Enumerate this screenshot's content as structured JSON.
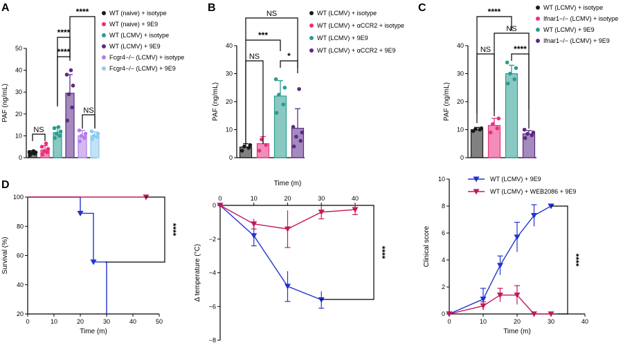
{
  "panels": {
    "A": "A",
    "B": "B",
    "C": "C",
    "D": "D"
  },
  "chart_data": [
    {
      "panel": "A",
      "type": "bar",
      "ylabel": "PAF (ng/mL)",
      "ylim": [
        0,
        50
      ],
      "yticks": [
        "0",
        "10",
        "20",
        "30",
        "40",
        "50"
      ],
      "series": [
        {
          "name": "WT (naive) + isotype",
          "color": "#1a1a1a",
          "mean": 2.2,
          "sd": 1.0,
          "points": [
            1.2,
            1.8,
            2.0,
            2.4,
            2.6,
            3.0
          ]
        },
        {
          "name": "WT (naive) + 9E9",
          "color": "#e8307f",
          "mean": 3.5,
          "sd": 2.0,
          "points": [
            1.5,
            2.5,
            3.0,
            4.0,
            5.0,
            6.5
          ]
        },
        {
          "name": "WT (LCMV) + isotype",
          "color": "#2a9d8f",
          "mean": 11.5,
          "sd": 2.5,
          "points": [
            9.0,
            10.0,
            11.0,
            12.0,
            13.5,
            14.0
          ]
        },
        {
          "name": "WT (LCMV) + 9E9",
          "color": "#5b2a86",
          "mean": 29.5,
          "sd": 8.5,
          "points": [
            17.0,
            23.0,
            29.0,
            33.0,
            38.0,
            40.0
          ]
        },
        {
          "name": "Fcgr4−/− (LCMV) + isotype",
          "color": "#b17ee8",
          "mean": 10.0,
          "sd": 2.5,
          "points": [
            7.5,
            9.0,
            10.0,
            11.0,
            12.5
          ]
        },
        {
          "name": "Fcgr4−/− (LCMV) + 9E9",
          "color": "#8ecbf0",
          "mean": 10.0,
          "sd": 1.8,
          "points": [
            8.5,
            9.5,
            10.0,
            11.0,
            12.0
          ]
        }
      ],
      "comparisons": [
        {
          "label": "NS"
        },
        {
          "label": "****"
        },
        {
          "label": "****"
        },
        {
          "label": "****"
        },
        {
          "label": "NS"
        }
      ]
    },
    {
      "panel": "B",
      "type": "bar",
      "ylabel": "PAF (ng/mL)",
      "ylim": [
        0,
        40
      ],
      "yticks": [
        "0",
        "10",
        "20",
        "30",
        "40"
      ],
      "series": [
        {
          "name": "WT (LCMV) + isotype",
          "color": "#1a1a1a",
          "mean": 3.8,
          "sd": 1.2,
          "points": [
            2.5,
            3.5,
            4.0,
            4.5
          ]
        },
        {
          "name": "WT (LCMV) + αCCR2 + isotype",
          "color": "#e8307f",
          "mean": 5.0,
          "sd": 2.5,
          "points": [
            2.5,
            4.5,
            6.5
          ]
        },
        {
          "name": "WT (LCMV) + 9E9",
          "color": "#2a9d8f",
          "mean": 22.0,
          "sd": 5.5,
          "points": [
            16.0,
            19.0,
            22.5,
            25.0,
            28.0
          ]
        },
        {
          "name": "WT (LCMV) + αCCR2 + 9E9",
          "color": "#5b2a86",
          "mean": 10.5,
          "sd": 7.0,
          "points": [
            4.0,
            6.0,
            7.5,
            9.0,
            11.0,
            24.5
          ]
        }
      ],
      "comparisons": [
        {
          "label": "NS"
        },
        {
          "label": "***"
        },
        {
          "label": "NS"
        },
        {
          "label": "*"
        }
      ]
    },
    {
      "panel": "C",
      "type": "bar",
      "ylabel": "PAF (ng/mL)",
      "ylim": [
        0,
        40
      ],
      "yticks": [
        "0",
        "10",
        "20",
        "30",
        "40"
      ],
      "series": [
        {
          "name": "WT (LCMV) + isotype",
          "color": "#1a1a1a",
          "mean": 10.0,
          "sd": 0.8,
          "points": [
            9.5,
            10.0,
            10.2,
            10.5
          ]
        },
        {
          "name": "Ifnar1−/− (LCMV) + isotype",
          "color": "#e8307f",
          "mean": 11.5,
          "sd": 2.5,
          "points": [
            9.0,
            10.5,
            12.0,
            14.0
          ]
        },
        {
          "name": "WT (LCMV) + 9E9",
          "color": "#2a9d8f",
          "mean": 30.0,
          "sd": 3.0,
          "points": [
            26.5,
            28.0,
            30.0,
            32.0,
            34.0
          ]
        },
        {
          "name": "Ifnar1−/− (LCMV) + 9E9",
          "color": "#5b2a86",
          "mean": 8.5,
          "sd": 1.2,
          "points": [
            7.0,
            8.0,
            8.5,
            9.0,
            10.0
          ]
        }
      ],
      "comparisons": [
        {
          "label": "****"
        },
        {
          "label": "NS"
        },
        {
          "label": "NS"
        },
        {
          "label": "****"
        }
      ]
    },
    {
      "panel": "D-survival",
      "type": "line",
      "xlabel": "Time (m)",
      "ylabel": "Survival (%)",
      "xlim": [
        0,
        50
      ],
      "ylim": [
        20,
        100
      ],
      "xticks": [
        "0",
        "10",
        "20",
        "30",
        "40",
        "50"
      ],
      "yticks": [
        "20",
        "40",
        "60",
        "80",
        "100"
      ],
      "series": [
        {
          "color": "#2233cc",
          "steps": [
            [
              0,
              100
            ],
            [
              20,
              100
            ],
            [
              20,
              88.9
            ],
            [
              25,
              88.9
            ],
            [
              25,
              55.6
            ],
            [
              30,
              55.6
            ],
            [
              30,
              20
            ]
          ],
          "markers": [
            [
              20,
              88.9
            ],
            [
              25,
              55.6
            ]
          ]
        },
        {
          "color": "#c2185b",
          "steps": [
            [
              0,
              100
            ],
            [
              45,
              100
            ]
          ],
          "markers": [
            [
              45,
              100
            ]
          ]
        }
      ],
      "significance": "****"
    },
    {
      "panel": "D-temperature",
      "type": "line",
      "xlabel": "Time (m)",
      "ylabel": "Δ temperature (°C)",
      "xlim": [
        0,
        40
      ],
      "ylim": [
        -8,
        0
      ],
      "xticks": [
        "0",
        "10",
        "20",
        "30",
        "40"
      ],
      "yticks": [
        "0",
        "−2",
        "−4",
        "−6",
        "−8"
      ],
      "series": [
        {
          "color": "#2233cc",
          "x": [
            0,
            10,
            20,
            30
          ],
          "y": [
            0,
            -1.8,
            -4.8,
            -5.6
          ],
          "err": [
            0,
            0.6,
            0.9,
            0.5
          ]
        },
        {
          "color": "#c2185b",
          "x": [
            0,
            10,
            20,
            30,
            40
          ],
          "y": [
            0,
            -1.1,
            -1.4,
            -0.4,
            -0.25
          ],
          "err": [
            0,
            0.3,
            1.1,
            0.4,
            0.3
          ]
        }
      ],
      "significance": "****"
    },
    {
      "panel": "D-clinical",
      "type": "line",
      "xlabel": "Time (m)",
      "ylabel": "Clinical score",
      "xlim": [
        0,
        40
      ],
      "ylim": [
        0,
        10
      ],
      "xticks": [
        "0",
        "10",
        "20",
        "30",
        "40"
      ],
      "yticks": [
        "0",
        "2",
        "4",
        "6",
        "8",
        "10"
      ],
      "series": [
        {
          "name": "WT (LCMV) + 9E9",
          "color": "#2233cc",
          "x": [
            0,
            10,
            15,
            20,
            25,
            30
          ],
          "y": [
            0,
            1.1,
            3.6,
            5.7,
            7.3,
            8.0
          ],
          "err": [
            0,
            0.8,
            0.7,
            1.1,
            0.8,
            0.1
          ]
        },
        {
          "name": "WT (LCMV) + WEB2086 + 9E9",
          "color": "#c2185b",
          "x": [
            0,
            10,
            15,
            20,
            25,
            30
          ],
          "y": [
            0,
            0.6,
            1.4,
            1.4,
            0,
            0
          ],
          "err": [
            0,
            0.3,
            0.5,
            0.7,
            0,
            0
          ]
        }
      ],
      "significance": "****"
    }
  ]
}
